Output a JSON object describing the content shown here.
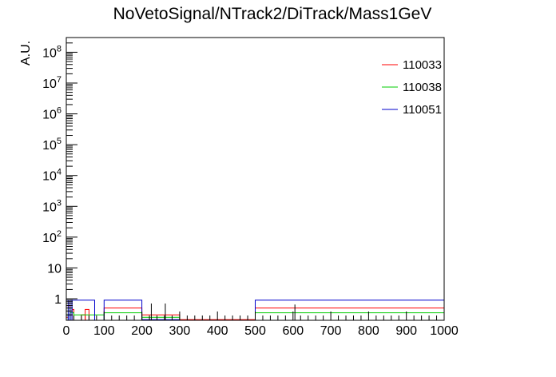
{
  "chart_data": {
    "type": "histogram",
    "title": "NoVetoSignal/NTrack2/DiTrack/Mass1GeV",
    "xlabel": "",
    "ylabel": "A.U.",
    "xlim": [
      0,
      1000
    ],
    "ylim": [
      0.2,
      300000000
    ],
    "yscale": "log",
    "grid": false,
    "legend_position": "top-right",
    "x_ticks": [
      "0",
      "100",
      "200",
      "300",
      "400",
      "500",
      "600",
      "700",
      "800",
      "900",
      "1000"
    ],
    "y_ticks": [
      {
        "value": 1,
        "base": "1",
        "exp": ""
      },
      {
        "value": 10,
        "base": "10",
        "exp": ""
      },
      {
        "value": 100,
        "base": "10",
        "exp": "2"
      },
      {
        "value": 1000,
        "base": "10",
        "exp": "3"
      },
      {
        "value": 10000,
        "base": "10",
        "exp": "4"
      },
      {
        "value": 100000,
        "base": "10",
        "exp": "5"
      },
      {
        "value": 1000000,
        "base": "10",
        "exp": "6"
      },
      {
        "value": 10000000,
        "base": "10",
        "exp": "7"
      },
      {
        "value": 100000000,
        "base": "10",
        "exp": "8"
      }
    ],
    "series": [
      {
        "name": "110033",
        "color": "#ff0000",
        "bins": [
          {
            "x0": 0,
            "x1": 5,
            "y": 0.25
          },
          {
            "x0": 5,
            "x1": 10,
            "y": 0.6
          },
          {
            "x0": 10,
            "x1": 15,
            "y": 0.3
          },
          {
            "x0": 15,
            "x1": 20,
            "y": 0.45
          },
          {
            "x0": 20,
            "x1": 40,
            "y": 0.2
          },
          {
            "x0": 40,
            "x1": 50,
            "y": 0.3
          },
          {
            "x0": 50,
            "x1": 60,
            "y": 0.45
          },
          {
            "x0": 60,
            "x1": 100,
            "y": 0.2
          },
          {
            "x0": 100,
            "x1": 200,
            "y": 0.5
          },
          {
            "x0": 200,
            "x1": 300,
            "y": 0.3
          },
          {
            "x0": 300,
            "x1": 500,
            "y": 0.21
          },
          {
            "x0": 500,
            "x1": 1000,
            "y": 0.5
          }
        ]
      },
      {
        "name": "110038",
        "color": "#00cc00",
        "bins": [
          {
            "x0": 0,
            "x1": 5,
            "y": 0.3
          },
          {
            "x0": 5,
            "x1": 10,
            "y": 0.5
          },
          {
            "x0": 10,
            "x1": 20,
            "y": 0.35
          },
          {
            "x0": 20,
            "x1": 100,
            "y": 0.3
          },
          {
            "x0": 100,
            "x1": 200,
            "y": 0.35
          },
          {
            "x0": 200,
            "x1": 300,
            "y": 0.25
          },
          {
            "x0": 300,
            "x1": 500,
            "y": 0.2
          },
          {
            "x0": 500,
            "x1": 1000,
            "y": 0.35
          }
        ]
      },
      {
        "name": "110051",
        "color": "#0000cc",
        "bins": [
          {
            "x0": 0,
            "x1": 5,
            "y": 0.9
          },
          {
            "x0": 5,
            "x1": 10,
            "y": 0.3
          },
          {
            "x0": 10,
            "x1": 15,
            "y": 0.9
          },
          {
            "x0": 15,
            "x1": 75,
            "y": 0.9
          },
          {
            "x0": 75,
            "x1": 100,
            "y": 0.2
          },
          {
            "x0": 100,
            "x1": 200,
            "y": 0.9
          },
          {
            "x0": 200,
            "x1": 300,
            "y": 0.21
          },
          {
            "x0": 300,
            "x1": 500,
            "y": 0.2
          },
          {
            "x0": 500,
            "x1": 1000,
            "y": 0.9
          }
        ]
      }
    ],
    "data_ticks": [
      {
        "x": 225,
        "y": 0.7
      },
      {
        "x": 262,
        "y": 0.7
      },
      {
        "x": 605,
        "y": 0.65
      }
    ]
  }
}
